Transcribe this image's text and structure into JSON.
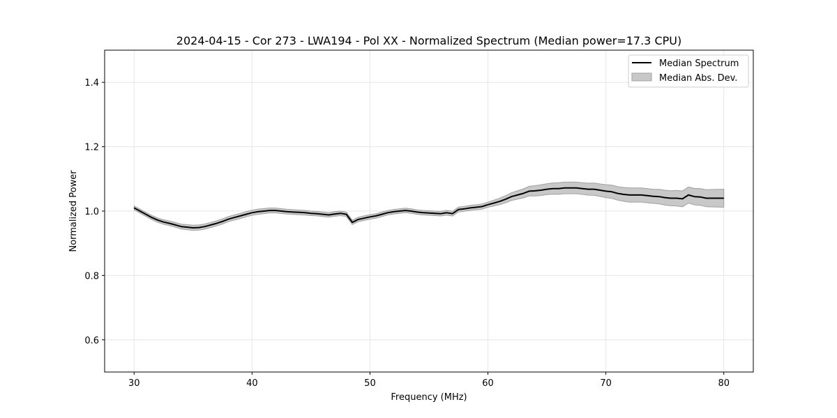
{
  "chart_data": {
    "type": "line",
    "title": "2024-04-15 - Cor 273 - LWA194 - Pol XX - Normalized Spectrum (Median power=17.3 CPU)",
    "xlabel": "Frequency (MHz)",
    "ylabel": "Normalized Power",
    "xlim": [
      27.5,
      82.5
    ],
    "ylim": [
      0.5,
      1.5
    ],
    "x_ticks": [
      30,
      40,
      50,
      60,
      70,
      80
    ],
    "x_tick_labels": [
      "30",
      "40",
      "50",
      "60",
      "70",
      "80"
    ],
    "y_ticks": [
      0.6,
      0.8,
      1.0,
      1.2,
      1.4
    ],
    "y_tick_labels": [
      "0.6",
      "0.8",
      "1.0",
      "1.2",
      "1.4"
    ],
    "grid": true,
    "legend_position": "top-right",
    "series": [
      {
        "name": "Median Spectrum",
        "color": "#000000",
        "x": [
          30,
          30.5,
          31,
          31.5,
          32,
          32.5,
          33,
          33.5,
          34,
          34.5,
          35,
          35.5,
          36,
          36.5,
          37,
          37.5,
          38,
          38.5,
          39,
          39.5,
          40,
          40.5,
          41,
          41.5,
          42,
          42.5,
          43,
          43.5,
          44,
          44.5,
          45,
          45.5,
          46,
          46.5,
          47,
          47.5,
          48,
          48.3,
          48.5,
          49,
          49.5,
          50,
          50.5,
          51,
          51.5,
          52,
          52.5,
          53,
          53.5,
          54,
          54.5,
          55,
          55.5,
          56,
          56.5,
          57,
          57.5,
          58,
          58.5,
          59,
          59.5,
          60,
          60.5,
          61,
          61.5,
          62,
          62.5,
          63,
          63.5,
          64,
          64.5,
          65,
          65.5,
          66,
          66.5,
          67,
          67.5,
          68,
          68.5,
          69,
          69.5,
          70,
          70.5,
          71,
          71.5,
          72,
          72.5,
          73,
          73.5,
          74,
          74.5,
          75,
          75.5,
          76,
          76.5,
          77,
          77.5,
          78,
          78.5,
          79,
          79.5,
          80
        ],
        "y": [
          1.01,
          1.0,
          0.99,
          0.98,
          0.972,
          0.966,
          0.962,
          0.957,
          0.952,
          0.95,
          0.948,
          0.949,
          0.952,
          0.957,
          0.962,
          0.968,
          0.975,
          0.98,
          0.985,
          0.99,
          0.995,
          0.998,
          1.0,
          1.002,
          1.002,
          1.0,
          0.998,
          0.997,
          0.996,
          0.995,
          0.993,
          0.992,
          0.99,
          0.988,
          0.991,
          0.993,
          0.99,
          0.975,
          0.965,
          0.974,
          0.978,
          0.982,
          0.985,
          0.99,
          0.995,
          0.998,
          1.0,
          1.002,
          1.0,
          0.997,
          0.995,
          0.994,
          0.993,
          0.992,
          0.995,
          0.992,
          1.005,
          1.007,
          1.01,
          1.012,
          1.014,
          1.02,
          1.025,
          1.03,
          1.037,
          1.045,
          1.05,
          1.055,
          1.062,
          1.063,
          1.065,
          1.068,
          1.07,
          1.07,
          1.072,
          1.072,
          1.072,
          1.07,
          1.068,
          1.068,
          1.065,
          1.062,
          1.06,
          1.055,
          1.052,
          1.05,
          1.05,
          1.05,
          1.048,
          1.046,
          1.045,
          1.042,
          1.04,
          1.04,
          1.038,
          1.05,
          1.045,
          1.044,
          1.04,
          1.04,
          1.04,
          1.04
        ]
      },
      {
        "name": "Median Abs. Dev.",
        "color": "#c8c8c8",
        "edge_color": "#a0a0a0",
        "x": [
          30,
          35,
          40,
          45,
          50,
          55,
          60,
          62,
          64,
          66,
          68,
          70,
          72,
          74,
          76,
          78,
          80
        ],
        "spread": [
          0.006,
          0.008,
          0.008,
          0.007,
          0.007,
          0.007,
          0.008,
          0.012,
          0.016,
          0.018,
          0.018,
          0.02,
          0.022,
          0.022,
          0.024,
          0.026,
          0.028
        ]
      }
    ]
  }
}
